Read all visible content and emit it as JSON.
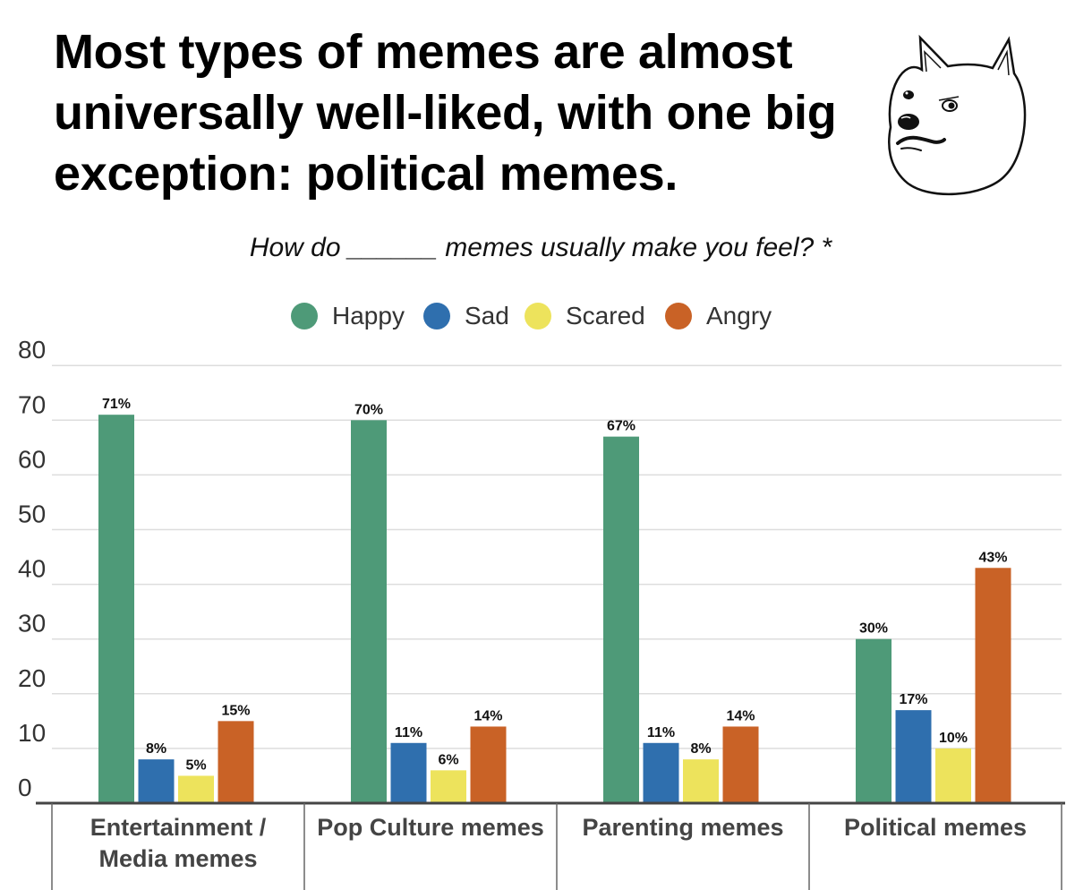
{
  "chart_data": {
    "type": "bar",
    "title": "Most types of memes are almost universally well-liked, with one big exception: political memes.",
    "subtitle": "How do ______ memes usually make you feel? *",
    "categories": [
      [
        "Entertainment /",
        "Media memes"
      ],
      [
        "Pop Culture memes"
      ],
      [
        "Parenting memes"
      ],
      [
        "Political memes"
      ]
    ],
    "series": [
      {
        "name": "Happy",
        "color": "#4e9a78",
        "values": [
          71,
          70,
          67,
          30
        ]
      },
      {
        "name": "Sad",
        "color": "#2f6fae",
        "values": [
          8,
          11,
          11,
          17
        ]
      },
      {
        "name": "Scared",
        "color": "#ede35c",
        "values": [
          5,
          6,
          8,
          10
        ]
      },
      {
        "name": "Angry",
        "color": "#c96226",
        "values": [
          15,
          14,
          14,
          43
        ]
      }
    ],
    "value_suffix": "%",
    "ylim": [
      0,
      80
    ],
    "yticks": [
      0,
      10,
      20,
      30,
      40,
      50,
      60,
      70,
      80
    ],
    "grid": true,
    "legend_position": "top-center",
    "xlabel": "",
    "ylabel": ""
  },
  "illustration": {
    "icon": "doge-icon"
  }
}
